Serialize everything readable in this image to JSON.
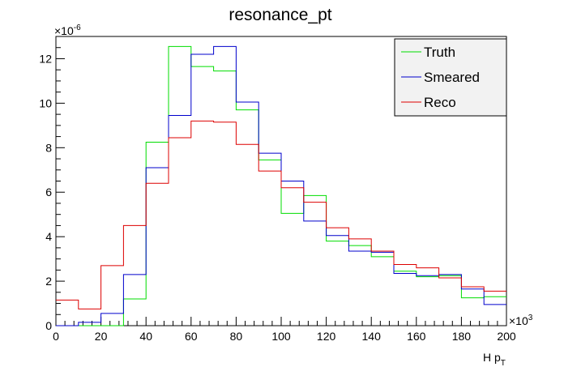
{
  "chart_data": {
    "type": "step-histogram",
    "title": "resonance_pt",
    "xlabel_main": "H p",
    "xlabel_sub": "T",
    "ylabel": "",
    "x_multiplier": {
      "base": "×10",
      "exp": "3"
    },
    "y_multiplier": {
      "base": "×10",
      "exp": "-6"
    },
    "xlim": [
      0,
      200
    ],
    "ylim": [
      0,
      13
    ],
    "x_ticks": [
      0,
      20,
      40,
      60,
      80,
      100,
      120,
      140,
      160,
      180,
      200
    ],
    "y_ticks": [
      0,
      2,
      4,
      6,
      8,
      10,
      12
    ],
    "bin_edges": [
      0,
      10,
      20,
      30,
      40,
      50,
      60,
      70,
      80,
      90,
      100,
      110,
      120,
      130,
      140,
      150,
      160,
      170,
      180,
      190,
      200
    ],
    "legend_position": "top-right",
    "series": [
      {
        "name": "Truth",
        "color": "#00dd00",
        "values": [
          0.0,
          0.0,
          0.0,
          1.2,
          8.25,
          12.55,
          11.65,
          11.45,
          9.7,
          7.45,
          5.05,
          5.85,
          3.8,
          3.6,
          3.1,
          2.45,
          2.2,
          2.25,
          1.25,
          1.3
        ]
      },
      {
        "name": "Smeared",
        "color": "#0000cc",
        "values": [
          0.0,
          0.15,
          0.55,
          2.3,
          7.1,
          9.45,
          12.2,
          12.55,
          10.05,
          7.75,
          6.5,
          4.7,
          4.05,
          3.35,
          3.3,
          2.35,
          2.25,
          2.3,
          1.65,
          0.95
        ]
      },
      {
        "name": "Reco",
        "color": "#dd0000",
        "values": [
          1.15,
          0.75,
          2.7,
          4.5,
          6.4,
          8.45,
          9.2,
          9.15,
          8.15,
          6.95,
          6.2,
          5.55,
          4.4,
          3.9,
          3.35,
          2.75,
          2.6,
          2.15,
          1.75,
          1.55
        ]
      }
    ]
  }
}
